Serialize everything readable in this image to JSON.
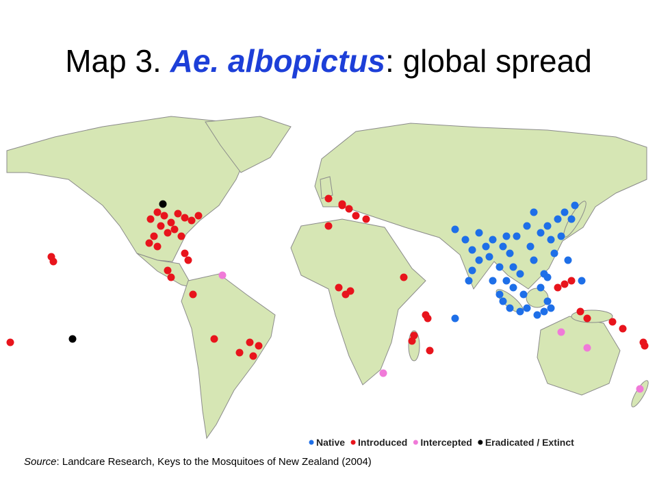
{
  "title": {
    "prefix": "Map 3.",
    "species": "Ae. albopictus",
    "suffix": ": global spread"
  },
  "legend": [
    {
      "label": "Native",
      "color": "#1e6fe8"
    },
    {
      "label": "Introduced",
      "color": "#e8141c"
    },
    {
      "label": "Intercepted",
      "color": "#f07ad8"
    },
    {
      "label": "Eradicated / Extinct",
      "color": "#000000"
    }
  ],
  "source": {
    "label": "Source",
    "text": ": Landcare Research, Keys to the Mosquitoes of New Zealand (2004)"
  }
}
